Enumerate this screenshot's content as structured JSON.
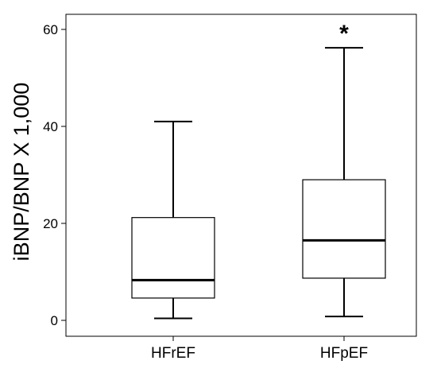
{
  "chart_data": {
    "type": "boxplot",
    "title": "",
    "xlabel": "",
    "ylabel": "iBNP/BNP X 1,000",
    "ylim": [
      0,
      62
    ],
    "yticks": [
      0,
      20,
      40,
      60
    ],
    "grid": false,
    "legend": "none",
    "categories": [
      "HFrEF",
      "HFpEF"
    ],
    "boxes": [
      {
        "category": "HFrEF",
        "min": 0.4,
        "q1": 4.6,
        "median": 8.3,
        "q3": 21.2,
        "max": 41.0,
        "annotation": ""
      },
      {
        "category": "HFpEF",
        "min": 0.8,
        "q1": 8.7,
        "median": 16.5,
        "q3": 29.0,
        "max": 56.2,
        "annotation": "*"
      }
    ],
    "colors": {
      "box_fill": "#ffffff",
      "stroke": "#000000",
      "median": "#000000"
    }
  }
}
